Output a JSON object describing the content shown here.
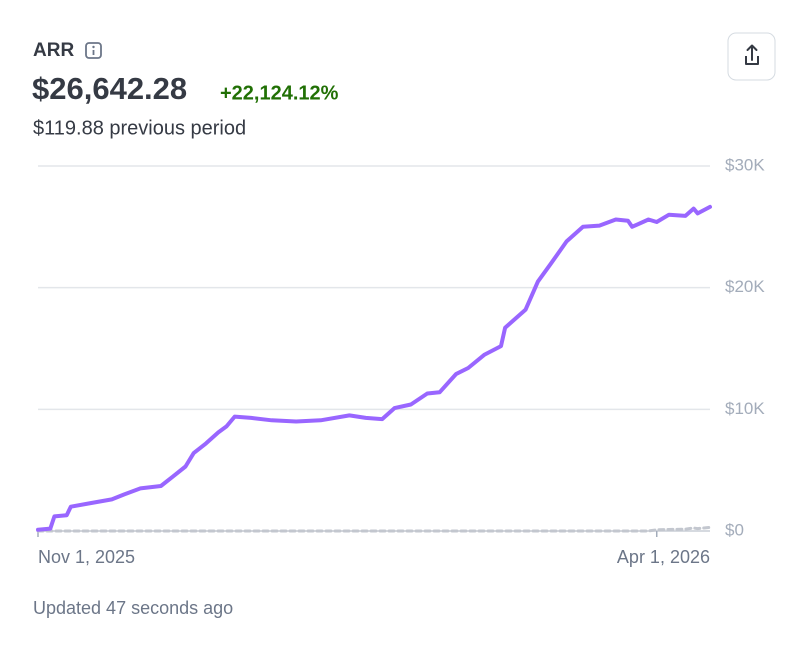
{
  "header": {
    "title": "ARR",
    "amount": "$26,642.28",
    "change": "+22,124.12%",
    "previous": "$119.88 previous period"
  },
  "footer": "Updated 47 seconds ago",
  "chart_data": {
    "type": "line",
    "x": [
      "2025-11-01",
      "2025-11-04",
      "2025-11-05",
      "2025-11-08",
      "2025-11-09",
      "2025-11-14",
      "2025-11-19",
      "2025-11-22",
      "2025-11-26",
      "2025-12-01",
      "2025-12-04",
      "2025-12-07",
      "2025-12-09",
      "2025-12-12",
      "2025-12-15",
      "2025-12-17",
      "2025-12-19",
      "2025-12-23",
      "2025-12-28",
      "2026-01-03",
      "2026-01-09",
      "2026-01-16",
      "2026-01-20",
      "2026-01-24",
      "2026-01-27",
      "2026-01-31",
      "2026-02-04",
      "2026-02-07",
      "2026-02-11",
      "2026-02-14",
      "2026-02-18",
      "2026-02-22",
      "2026-02-23",
      "2026-02-28",
      "2026-03-03",
      "2026-03-06",
      "2026-03-10",
      "2026-03-14",
      "2026-03-18",
      "2026-03-22",
      "2026-03-25",
      "2026-03-26",
      "2026-03-30",
      "2026-04-01",
      "2026-04-04",
      "2026-04-08",
      "2026-04-10",
      "2026-04-11",
      "2026-04-14"
    ],
    "series": [
      {
        "color": "#9966ff",
        "values": [
          100,
          200,
          1200,
          1300,
          2000,
          2300,
          2600,
          3000,
          3500,
          3700,
          4500,
          5300,
          6400,
          7200,
          8100,
          8600,
          9400,
          9300,
          9100,
          9000,
          9100,
          9500,
          9300,
          9200,
          10100,
          10400,
          11300,
          11400,
          12900,
          13400,
          14500,
          15200,
          16700,
          18200,
          20500,
          21900,
          23800,
          25000,
          25100,
          25600,
          25500,
          25000,
          25600,
          25400,
          26000,
          25900,
          26500,
          26100,
          26642.28
        ]
      },
      {
        "color": "#c3c7cf",
        "dashed": true,
        "values": [
          0,
          0,
          0,
          0,
          0,
          0,
          0,
          0,
          0,
          0,
          0,
          0,
          0,
          0,
          0,
          0,
          0,
          0,
          0,
          0,
          0,
          0,
          0,
          0,
          0,
          0,
          0,
          0,
          0,
          0,
          0,
          0,
          0,
          0,
          0,
          0,
          0,
          0,
          0,
          0,
          0,
          0,
          0,
          100,
          120,
          150,
          250,
          200,
          300
        ]
      }
    ],
    "xlim": [
      "2025-11-01",
      "2026-04-14"
    ],
    "xticks": [
      {
        "value": "2025-11-01",
        "label": "Nov 1, 2025"
      },
      {
        "value": "2026-04-01",
        "label": "Apr 1, 2026"
      }
    ],
    "ylim": [
      0,
      30000
    ],
    "yticks": [
      {
        "value": 0,
        "label": "$0"
      },
      {
        "value": 10000,
        "label": "$10K"
      },
      {
        "value": 20000,
        "label": "$20K"
      },
      {
        "value": 30000,
        "label": "$30K"
      }
    ],
    "grid": true
  }
}
